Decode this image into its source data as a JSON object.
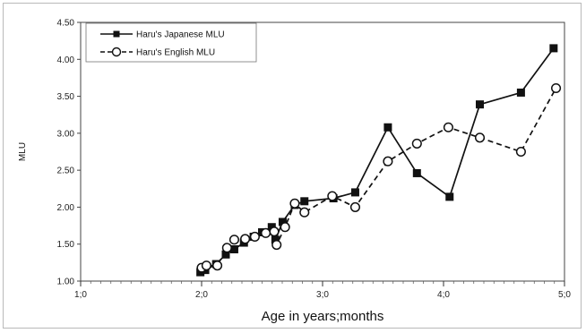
{
  "chart_data": {
    "type": "line",
    "xlabel": "Age in years;months",
    "ylabel": "MLU",
    "xlim": [
      1.0,
      5.0
    ],
    "ylim": [
      1.0,
      4.5
    ],
    "x_ticks": [
      1,
      2,
      3,
      4,
      5
    ],
    "x_tick_labels": [
      "1;0",
      "2;0",
      "3;0",
      "4;0",
      "5;0"
    ],
    "y_ticks": [
      1.0,
      1.5,
      2.0,
      2.5,
      3.0,
      3.5,
      4.0,
      4.5
    ],
    "y_tick_labels": [
      "1.00",
      "1.50",
      "2.00",
      "2.50",
      "3.00",
      "3.50",
      "4.00",
      "4.50"
    ],
    "x_minor_ticks_per_unit": 12,
    "grid": false,
    "legend_position": "top-left",
    "series": [
      {
        "name": "Haru's Japanese MLU",
        "line_style": "solid",
        "marker": "filled-square",
        "color": "#111111",
        "points": [
          [
            1.99,
            1.12
          ],
          [
            2.03,
            1.15
          ],
          [
            2.12,
            1.23
          ],
          [
            2.2,
            1.36
          ],
          [
            2.27,
            1.43
          ],
          [
            2.35,
            1.52
          ],
          [
            2.43,
            1.6
          ],
          [
            2.5,
            1.66
          ],
          [
            2.58,
            1.73
          ],
          [
            2.61,
            1.56
          ],
          [
            2.67,
            1.8
          ],
          [
            2.77,
            2.03
          ],
          [
            2.85,
            2.08
          ],
          [
            3.09,
            2.12
          ],
          [
            3.27,
            2.2
          ],
          [
            3.54,
            3.08
          ],
          [
            3.78,
            2.46
          ],
          [
            4.05,
            2.14
          ],
          [
            4.3,
            3.39
          ],
          [
            4.64,
            3.55
          ],
          [
            4.91,
            4.15
          ]
        ]
      },
      {
        "name": "Haru's English MLU",
        "line_style": "dashed",
        "marker": "open-circle",
        "color": "#111111",
        "points": [
          [
            2.0,
            1.18
          ],
          [
            2.04,
            1.21
          ],
          [
            2.13,
            1.21
          ],
          [
            2.21,
            1.45
          ],
          [
            2.27,
            1.56
          ],
          [
            2.36,
            1.57
          ],
          [
            2.44,
            1.6
          ],
          [
            2.53,
            1.65
          ],
          [
            2.6,
            1.67
          ],
          [
            2.62,
            1.49
          ],
          [
            2.69,
            1.73
          ],
          [
            2.77,
            2.05
          ],
          [
            2.85,
            1.93
          ],
          [
            3.08,
            2.15
          ],
          [
            3.27,
            2.0
          ],
          [
            3.54,
            2.62
          ],
          [
            3.78,
            2.86
          ],
          [
            4.04,
            3.08
          ],
          [
            4.3,
            2.94
          ],
          [
            4.64,
            2.75
          ],
          [
            4.93,
            3.61
          ]
        ]
      }
    ]
  }
}
